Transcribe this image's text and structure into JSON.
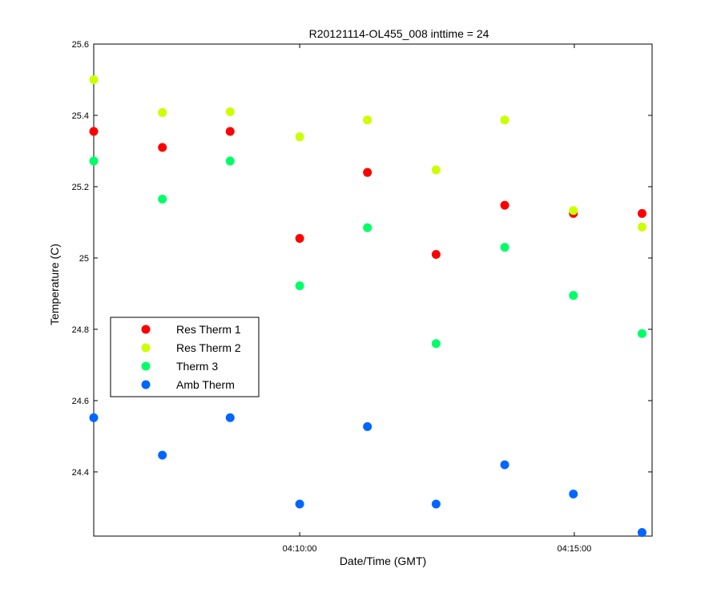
{
  "chart_data": {
    "type": "scatter",
    "title": "R20121114-OL455_008 inttime = 24",
    "xlabel": "Date/Time (GMT)",
    "ylabel": "Temperature (C)",
    "x_unit": "time (HH:MM:SS)",
    "xlim": [
      "04:06:15",
      "04:16:25"
    ],
    "ylim": [
      24.22,
      25.6
    ],
    "x_ticks": [
      "04:10:00",
      "04:15:00"
    ],
    "y_ticks": [
      24.4,
      24.6,
      24.8,
      25,
      25.2,
      25.4,
      25.6
    ],
    "y_tick_labels": [
      "24.4",
      "24.6",
      "24.8",
      "25",
      "25.2",
      "25.4",
      "25.6"
    ],
    "grid": false,
    "legend_position": "left",
    "x": [
      "04:06:15",
      "04:07:30",
      "04:08:44",
      "04:10:00",
      "04:11:14",
      "04:12:29",
      "04:13:44",
      "04:14:59",
      "04:16:14"
    ],
    "series": [
      {
        "name": "Res Therm 1",
        "color": "#ff0000",
        "values": [
          25.355,
          25.31,
          25.355,
          25.055,
          25.24,
          25.01,
          25.148,
          25.125,
          25.125
        ]
      },
      {
        "name": "Res Therm 2",
        "color": "#ccff00",
        "values": [
          25.5,
          25.408,
          25.41,
          25.34,
          25.387,
          25.247,
          25.387,
          25.133,
          25.087
        ]
      },
      {
        "name": "Therm 3",
        "color": "#00ff66",
        "values": [
          25.272,
          25.165,
          25.272,
          24.922,
          25.085,
          24.76,
          25.03,
          24.895,
          24.788
        ]
      },
      {
        "name": "Amb Therm",
        "color": "#0066ff",
        "values": [
          24.552,
          24.447,
          24.552,
          24.31,
          24.527,
          24.31,
          24.42,
          24.338,
          24.23
        ]
      }
    ]
  }
}
